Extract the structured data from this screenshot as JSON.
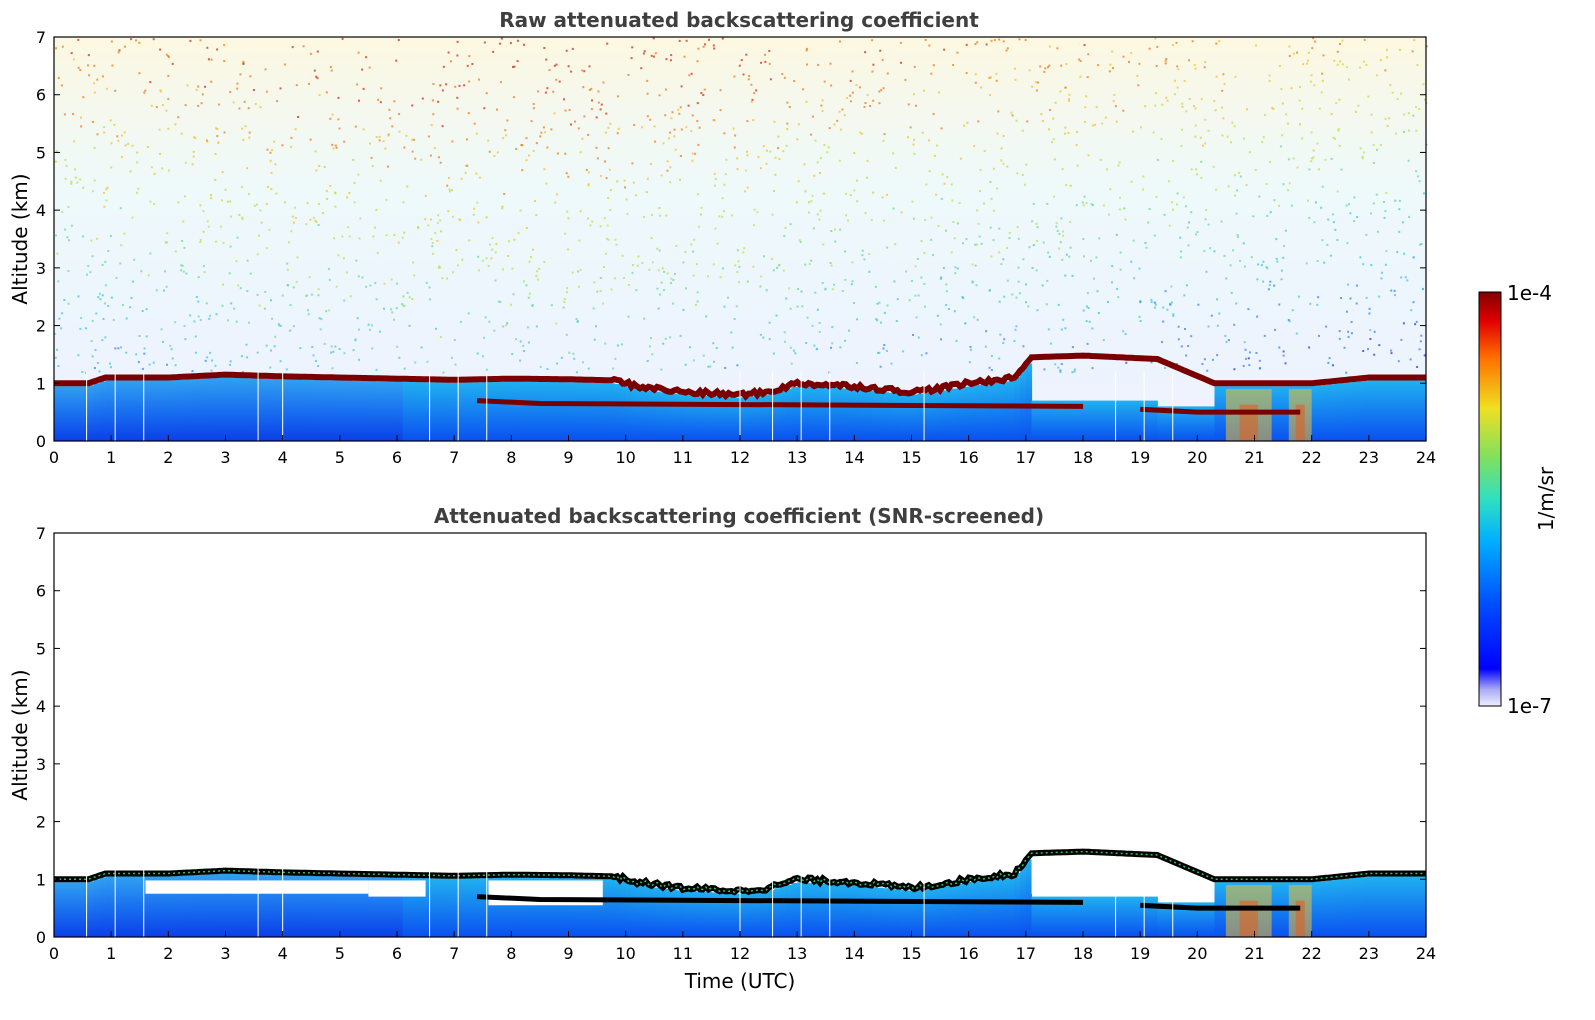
{
  "chart_data": [
    {
      "type": "heatmap",
      "id": "top",
      "title": "Raw attenuated backscattering coefficient",
      "xlabel": "",
      "ylabel": "Altitude (km)",
      "xlim": [
        0,
        24
      ],
      "ylim": [
        0,
        7
      ],
      "xticks": [
        "0",
        "1",
        "2",
        "3",
        "4",
        "5",
        "6",
        "7",
        "8",
        "9",
        "10",
        "11",
        "12",
        "13",
        "14",
        "15",
        "16",
        "17",
        "18",
        "19",
        "20",
        "21",
        "22",
        "23",
        "24"
      ],
      "yticks": [
        "0",
        "1",
        "2",
        "3",
        "4",
        "5",
        "6",
        "7"
      ],
      "screened": false,
      "layer_top_km": [
        [
          0,
          1.0
        ],
        [
          0.6,
          1.0
        ],
        [
          0.9,
          1.1
        ],
        [
          2,
          1.1
        ],
        [
          3,
          1.15
        ],
        [
          4,
          1.12
        ],
        [
          5,
          1.1
        ],
        [
          6,
          1.08
        ],
        [
          7,
          1.06
        ],
        [
          8,
          1.08
        ],
        [
          9,
          1.07
        ],
        [
          9.8,
          1.05
        ],
        [
          10.2,
          0.95
        ],
        [
          11,
          0.85
        ],
        [
          12,
          0.8
        ],
        [
          12.5,
          0.85
        ],
        [
          13,
          1.0
        ],
        [
          14,
          0.95
        ],
        [
          15,
          0.85
        ],
        [
          15.4,
          0.9
        ],
        [
          16,
          1.0
        ],
        [
          16.8,
          1.1
        ],
        [
          17.1,
          1.45
        ],
        [
          18,
          1.48
        ],
        [
          19.3,
          1.42
        ],
        [
          20.3,
          1.0
        ],
        [
          21,
          1.0
        ],
        [
          21.5,
          1.0
        ],
        [
          22,
          1.0
        ],
        [
          22.5,
          1.05
        ],
        [
          23,
          1.1
        ],
        [
          24,
          1.1
        ]
      ],
      "lower_layer_km": [
        [
          7.4,
          0.7
        ],
        [
          8.5,
          0.65
        ],
        [
          18,
          0.6
        ],
        [
          19,
          0.55
        ],
        [
          20,
          0.5
        ],
        [
          21.8,
          0.5
        ]
      ]
    },
    {
      "type": "heatmap",
      "id": "bottom",
      "title": "Attenuated backscattering coefficient (SNR-screened)",
      "xlabel": "Time (UTC)",
      "ylabel": "Altitude (km)",
      "xlim": [
        0,
        24
      ],
      "ylim": [
        0,
        7
      ],
      "xticks": [
        "0",
        "1",
        "2",
        "3",
        "4",
        "5",
        "6",
        "7",
        "8",
        "9",
        "10",
        "11",
        "12",
        "13",
        "14",
        "15",
        "16",
        "17",
        "18",
        "19",
        "20",
        "21",
        "22",
        "23",
        "24"
      ],
      "yticks": [
        "0",
        "1",
        "2",
        "3",
        "4",
        "5",
        "6",
        "7"
      ],
      "screened": true
    }
  ],
  "colorbar": {
    "label": "1/m/sr",
    "max_label": "1e-4",
    "min_label": "1e-7",
    "scale": "log",
    "range": [
      1e-07,
      0.0001
    ]
  },
  "colors": {
    "cloud_core": "#7a0000",
    "cloud_edge": "#000000",
    "aerosol": "#1f9fe6",
    "noise_low": "#1133cc",
    "noise_high": "#f0c020"
  }
}
